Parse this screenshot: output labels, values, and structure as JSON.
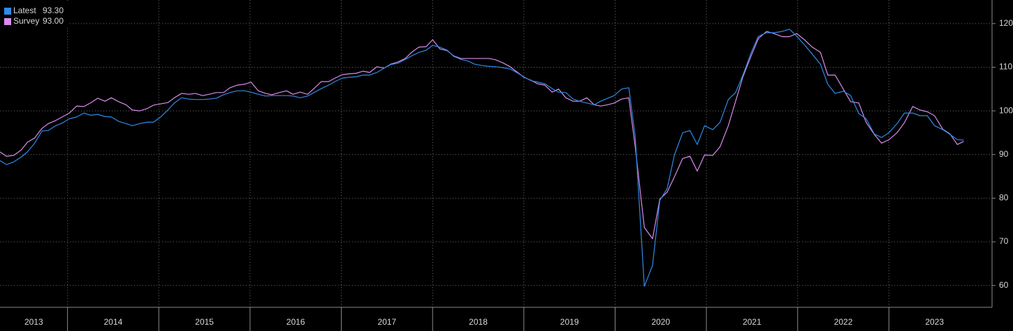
{
  "chart_data": {
    "type": "line",
    "x": [
      2013.26,
      2013.33,
      2013.41,
      2013.49,
      2013.56,
      2013.64,
      2013.72,
      2013.79,
      2013.87,
      2013.95,
      2014.02,
      2014.1,
      2014.18,
      2014.25,
      2014.33,
      2014.41,
      2014.48,
      2014.56,
      2014.64,
      2014.71,
      2014.79,
      2014.87,
      2014.94,
      2015.02,
      2015.1,
      2015.17,
      2015.25,
      2015.33,
      2015.4,
      2015.48,
      2015.55,
      2015.63,
      2015.71,
      2015.78,
      2015.86,
      2015.94,
      2016.01,
      2016.09,
      2016.17,
      2016.24,
      2016.32,
      2016.4,
      2016.47,
      2016.55,
      2016.63,
      2016.7,
      2016.78,
      2016.86,
      2016.93,
      2017.01,
      2017.09,
      2017.16,
      2017.24,
      2017.31,
      2017.39,
      2017.47,
      2017.54,
      2017.62,
      2017.7,
      2017.77,
      2017.85,
      2017.93,
      2018.0,
      2018.08,
      2018.16,
      2018.23,
      2018.31,
      2018.39,
      2018.46,
      2018.54,
      2018.62,
      2018.69,
      2018.77,
      2018.85,
      2018.92,
      2019.0,
      2019.08,
      2019.15,
      2019.23,
      2019.31,
      2019.38,
      2019.46,
      2019.54,
      2019.61,
      2019.69,
      2019.77,
      2019.84,
      2019.92,
      2019.99,
      2020.07,
      2020.15,
      2020.22,
      2020.32,
      2020.41,
      2020.49,
      2020.57,
      2020.65,
      2020.74,
      2020.82,
      2020.9,
      2020.98,
      2021.07,
      2021.15,
      2021.24,
      2021.32,
      2021.4,
      2021.49,
      2021.57,
      2021.66,
      2021.74,
      2021.83,
      2021.91,
      2021.99,
      2022.08,
      2022.16,
      2022.25,
      2022.33,
      2022.41,
      2022.5,
      2022.58,
      2022.67,
      2022.75,
      2022.84,
      2022.92,
      2023.0,
      2023.09,
      2023.17,
      2023.26,
      2023.34,
      2023.42,
      2023.5,
      2023.59,
      2023.67,
      2023.75,
      2023.82
    ],
    "series": [
      {
        "name": "Latest",
        "legend_value": "93.30",
        "color": "#2f8ae8",
        "values": [
          88.6,
          87.7,
          88.3,
          89.4,
          90.6,
          92.6,
          95.4,
          95.5,
          96.6,
          97.3,
          98.2,
          98.6,
          99.5,
          99.0,
          99.2,
          98.7,
          98.6,
          97.6,
          97.1,
          96.6,
          97.1,
          97.4,
          97.4,
          98.6,
          100.2,
          101.8,
          103.0,
          102.7,
          102.6,
          102.6,
          102.7,
          102.9,
          103.7,
          104.2,
          104.6,
          104.6,
          104.3,
          103.8,
          103.4,
          103.5,
          103.5,
          103.5,
          103.4,
          103.0,
          103.4,
          104.2,
          105.1,
          105.9,
          106.7,
          107.5,
          107.7,
          107.8,
          108.2,
          108.2,
          108.8,
          109.8,
          110.6,
          110.9,
          111.8,
          112.6,
          113.4,
          113.9,
          115.0,
          114.6,
          113.9,
          112.5,
          111.8,
          111.4,
          110.7,
          110.4,
          110.2,
          110.1,
          109.9,
          109.6,
          108.8,
          107.8,
          106.9,
          106.6,
          106.2,
          105.1,
          104.3,
          104.2,
          102.7,
          102.2,
          101.8,
          101.4,
          102.2,
          102.9,
          103.5,
          105.0,
          105.3,
          94.2,
          59.8,
          64.6,
          79.5,
          82.2,
          89.9,
          95.0,
          95.5,
          92.3,
          96.6,
          95.7,
          97.4,
          102.6,
          104.2,
          108.2,
          113.3,
          117.1,
          117.9,
          117.9,
          118.2,
          118.7,
          117.1,
          115.0,
          113.0,
          110.7,
          106.1,
          104.0,
          104.5,
          103.5,
          99.4,
          98.2,
          94.7,
          93.9,
          95.0,
          97.1,
          99.5,
          99.5,
          98.9,
          98.9,
          96.6,
          95.7,
          94.6,
          93.4,
          93.3
        ]
      },
      {
        "name": "Survey",
        "legend_value": "93.00",
        "color": "#d98cec",
        "values": [
          90.6,
          89.6,
          89.8,
          91.0,
          92.8,
          93.8,
          96.0,
          97.1,
          97.8,
          98.7,
          99.5,
          101.1,
          101.0,
          101.8,
          102.9,
          102.2,
          103.0,
          102.1,
          101.4,
          100.2,
          100.0,
          100.5,
          101.3,
          101.6,
          101.9,
          103.0,
          104.0,
          103.8,
          104.0,
          103.5,
          103.8,
          104.2,
          104.2,
          105.3,
          105.9,
          106.1,
          106.6,
          104.6,
          104.0,
          103.7,
          104.2,
          104.6,
          103.8,
          104.3,
          103.8,
          105.1,
          106.7,
          106.7,
          107.5,
          108.3,
          108.5,
          108.6,
          109.1,
          108.8,
          110.1,
          109.8,
          110.7,
          111.2,
          112.0,
          113.4,
          114.6,
          114.7,
          116.3,
          114.2,
          113.8,
          112.6,
          112.0,
          112.0,
          112.0,
          112.0,
          112.0,
          111.7,
          111.0,
          110.1,
          109.0,
          107.7,
          107.0,
          106.2,
          105.9,
          104.3,
          105.0,
          103.0,
          102.2,
          102.2,
          103.0,
          101.4,
          101.1,
          101.4,
          101.8,
          102.7,
          103.0,
          91.8,
          73.3,
          70.7,
          79.8,
          81.4,
          84.9,
          89.1,
          89.6,
          86.2,
          89.9,
          89.8,
          91.8,
          96.6,
          102.2,
          107.8,
          112.6,
          116.6,
          118.2,
          117.7,
          117.0,
          117.0,
          117.7,
          116.2,
          114.6,
          113.4,
          108.2,
          108.2,
          105.0,
          102.1,
          101.8,
          97.4,
          94.6,
          92.6,
          93.4,
          95.0,
          97.3,
          101.0,
          100.2,
          99.8,
          98.9,
          95.8,
          94.7,
          92.3,
          93.0
        ]
      }
    ],
    "xlim": [
      2013.26,
      2024.13
    ],
    "xticks": [
      {
        "value": 2013,
        "label": "2013"
      },
      {
        "value": 2014,
        "label": "2014"
      },
      {
        "value": 2015,
        "label": "2015"
      },
      {
        "value": 2016,
        "label": "2016"
      },
      {
        "value": 2017,
        "label": "2017"
      },
      {
        "value": 2018,
        "label": "2018"
      },
      {
        "value": 2019,
        "label": "2019"
      },
      {
        "value": 2020,
        "label": "2020"
      },
      {
        "value": 2021,
        "label": "2021"
      },
      {
        "value": 2022,
        "label": "2022"
      },
      {
        "value": 2023,
        "label": "2023"
      }
    ],
    "ylim": [
      55,
      125.4
    ],
    "yticks": [
      60,
      70,
      80,
      90,
      100,
      110,
      120
    ],
    "grid": true,
    "legend": "top-left"
  }
}
